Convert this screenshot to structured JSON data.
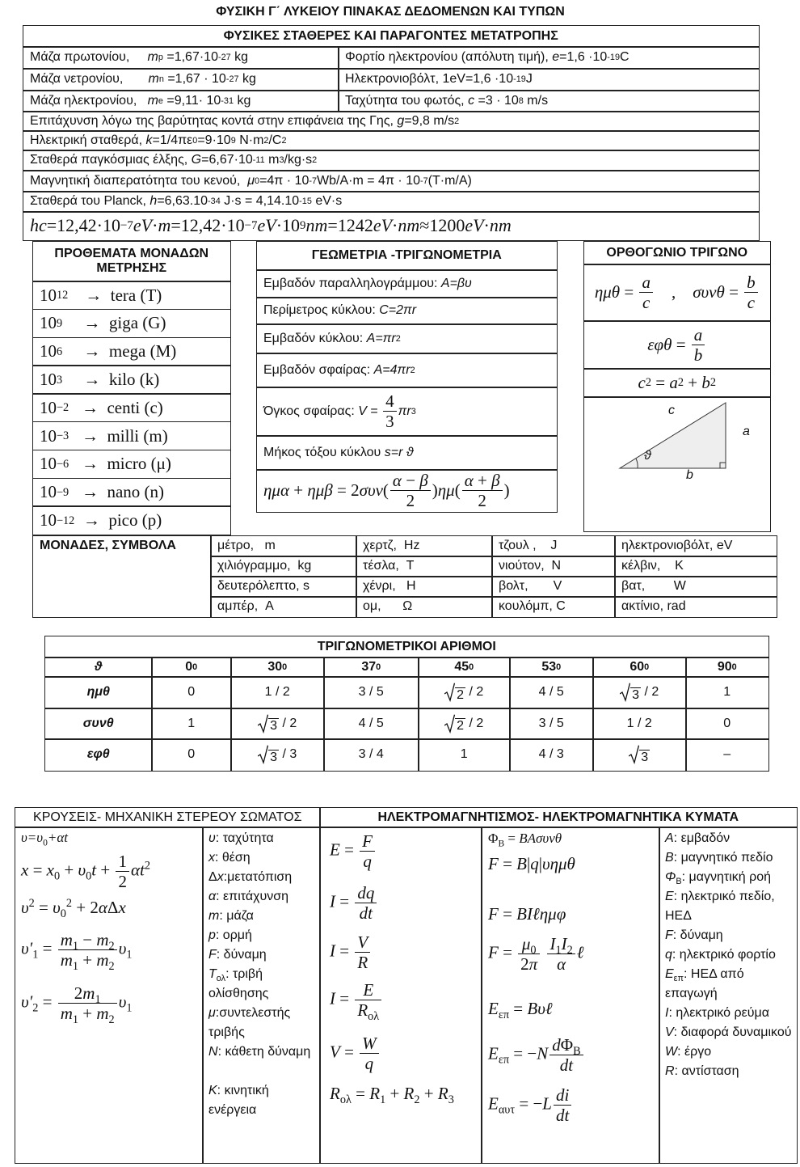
{
  "title": "ΦΥΣΙΚΗ Γ΄ ΛΥΚΕΙΟΥ ΠΙΝΑΚΑΣ ΔΕΔΟΜΕΝΩΝ ΚΑΙ ΤΥΠΩΝ",
  "constants": {
    "title": "ΦΥΣΙΚΕΣ ΣΤΑΘΕΡΕΣ ΚΑΙ ΠΑΡΑΓΟΝΤΕΣ ΜΕΤΑΤΡΟΠΗΣ",
    "rows": [
      [
        [
          "Μάζα πρωτονίου,     ",
          {
            "i": "m"
          },
          {
            "sub": "p"
          },
          " =1,67·10",
          {
            "sup": "-27"
          },
          " kg"
        ],
        [
          "Φορτίο ηλεκτρονίου (απόλυτη τιμή), ",
          {
            "i": "e"
          },
          "=1,6 ·10",
          {
            "sup": "-19"
          },
          "C"
        ]
      ],
      [
        [
          "Μάζα νετρονίου,       ",
          {
            "i": "m"
          },
          {
            "sub": "n"
          },
          " =1,67 · 10",
          {
            "sup": "-27"
          },
          " kg"
        ],
        [
          "Ηλεκτρονιοβόλτ, 1eV=1,6 ·10",
          {
            "sup": "-19"
          },
          "J"
        ]
      ],
      [
        [
          "Μάζα ηλεκτρονίου,   ",
          {
            "i": "m"
          },
          {
            "sub": "e"
          },
          " =9,11· 10",
          {
            "sup": "-31"
          },
          " kg"
        ],
        [
          "Ταχύτητα του φωτός, ",
          {
            "i": "c"
          },
          " =3 · 10",
          {
            "sup": "8"
          },
          " m/s"
        ]
      ],
      [
        [
          "Επιτάχυνση λόγω της βαρύτητας κοντά στην επιφάνεια της Γης, ",
          {
            "i": "g"
          },
          "=9,8 m/s",
          {
            "sup": "2"
          }
        ]
      ],
      [
        [
          "Ηλεκτρική σταθερά, ",
          {
            "i": "k"
          },
          "=1/4πε",
          {
            "sub": "0"
          },
          "=9·10",
          {
            "sup": "9"
          },
          " N·m",
          {
            "sup": "2"
          },
          "/C",
          {
            "sup": "2"
          }
        ]
      ],
      [
        [
          "Σταθερά παγκόσμιας έλξης, ",
          {
            "i": "G"
          },
          "=6,67·10",
          {
            "sup": "-11"
          },
          " m",
          {
            "sup": "3"
          },
          "/kg·s",
          {
            "sup": "2"
          }
        ]
      ],
      [
        [
          "Μαγνητική διαπερατότητα του κενού,  ",
          {
            "i": "μ"
          },
          {
            "sub": "0"
          },
          "=4π · 10",
          {
            "sup": "-7"
          },
          "Wb/A·m = 4π · 10",
          {
            "sup": "-7"
          },
          "(T·m/A)"
        ]
      ],
      [
        [
          "Σταθερά του Planck, ",
          {
            "i": "h"
          },
          "=6,63.10",
          {
            "sup": "-34"
          },
          " J·s = 4,14.10",
          {
            "sup": "-15"
          },
          " eV·s"
        ]
      ],
      [
        [
          {
            "i": "hc"
          },
          "=12,42·10",
          {
            "sup": "−7"
          },
          {
            "i": "eV"
          },
          "·",
          {
            "i": "m"
          },
          "=12,42·10",
          {
            "sup": "−7"
          },
          {
            "i": "eV"
          },
          "·10",
          {
            "sup": "9"
          },
          {
            "i": "nm"
          },
          "=1242",
          {
            "i": "eV"
          },
          "·",
          {
            "i": "nm"
          },
          "≈1200",
          {
            "i": "eV"
          },
          "·",
          {
            "i": "nm"
          }
        ]
      ]
    ]
  },
  "prefixes": {
    "title": "ΠΡΟΘΕΜΑΤΑ ΜΟΝΑΔΩΝ ΜΕΤΡΗΣΗΣ",
    "rows": [
      [
        "10",
        {
          "sup": "12"
        },
        "    →  tera (T)"
      ],
      [
        "10",
        {
          "sup": "9"
        },
        "     →  giga (G)"
      ],
      [
        "10",
        {
          "sup": "6"
        },
        "     →  mega (M)"
      ],
      [
        "10",
        {
          "sup": "3"
        },
        "     →  kilo (k)"
      ],
      [
        "10",
        {
          "sup": "−2"
        },
        "   →  centi (c)"
      ],
      [
        "10",
        {
          "sup": "−3"
        },
        "   →  milli (m)"
      ],
      [
        "10",
        {
          "sup": "−6"
        },
        "   →  micro (μ)"
      ],
      [
        "10",
        {
          "sup": "−9"
        },
        "   →  nano (n)"
      ],
      [
        "10",
        {
          "sup": "−12"
        },
        "  →  pico (p)"
      ]
    ]
  },
  "geometry": {
    "title": "ΓΕΩΜΕΤΡΙΑ -ΤΡΙΓΩΝΟΜΕΤΡΙΑ",
    "rows": [
      [
        "Εμβαδόν παραλληλογράμμου: ",
        {
          "i": "A=βυ"
        }
      ],
      [
        "Περίμετρος κύκλου: ",
        {
          "i": "C=2πr"
        }
      ],
      [
        "Εμβαδόν κύκλου: ",
        {
          "i": "A=πr"
        },
        {
          "sup": "2"
        }
      ],
      [
        "Εμβαδόν σφαίρας: ",
        {
          "i": "A=4πr"
        },
        {
          "sup": "2"
        }
      ],
      [
        "Όγκος σφαίρας: ",
        {
          "i": "V"
        },
        " = ",
        {
          "frac": {
            "num": [
              "4"
            ],
            "den": [
              "3"
            ]
          }
        },
        {
          "i": "πr"
        },
        {
          "sup": "3"
        }
      ],
      [
        "Μήκος τόξου κύκλου ",
        {
          "i": "s=r ϑ"
        }
      ],
      [
        {
          "i": "ημα"
        },
        " + ",
        {
          "i": "ημβ"
        },
        " = 2",
        {
          "i": "συν"
        },
        "(",
        {
          "frac": {
            "num": [
              {
                "i": "α"
              },
              " − ",
              {
                "i": "β"
              }
            ],
            "den": [
              "2"
            ]
          }
        },
        ")",
        {
          "i": "ημ"
        },
        "(",
        {
          "frac": {
            "num": [
              {
                "i": "α"
              },
              " + ",
              {
                "i": "β"
              }
            ],
            "den": [
              "2"
            ]
          }
        },
        ")"
      ]
    ]
  },
  "right_triangle": {
    "title": "ΟΡΘΟΓΩΝΙΟ ΤΡΙΓΩΝΟ",
    "rows": [
      [
        {
          "i": "ημθ"
        },
        " = ",
        {
          "frac": {
            "num": [
              {
                "i": "a"
              }
            ],
            "den": [
              {
                "i": "c"
              }
            ]
          }
        },
        "    ,    ",
        {
          "i": "συνθ"
        },
        " = ",
        {
          "frac": {
            "num": [
              {
                "i": "b"
              }
            ],
            "den": [
              {
                "i": "c"
              }
            ]
          }
        }
      ],
      [
        {
          "i": "εφθ"
        },
        " = ",
        {
          "frac": {
            "num": [
              {
                "i": "a"
              }
            ],
            "den": [
              {
                "i": "b"
              }
            ]
          }
        }
      ],
      [
        {
          "i": "c"
        },
        {
          "sup": "2"
        },
        " = ",
        {
          "i": "a"
        },
        {
          "sup": "2"
        },
        " + ",
        {
          "i": "b"
        },
        {
          "sup": "2"
        }
      ]
    ],
    "figure_labels": [
      "c",
      "a",
      "b",
      "ϑ"
    ]
  },
  "units": {
    "title": "ΜΟΝΑΔΕΣ, ΣΥΜΒΟΛΑ",
    "rows": [
      [
        "μέτρο,   m",
        "χερτζ,  Hz",
        "τζουλ ,    J",
        "ηλεκτρονιοβόλτ, eV"
      ],
      [
        "χιλιόγραμμο,  kg",
        "τέσλα,  T",
        "νιούτον,  N",
        "κέλβιν,    K"
      ],
      [
        "δευτερόλεπτο, s",
        "χένρι,   H",
        "βολτ,       V",
        "βατ,        W"
      ],
      [
        "αμπέρ,  A",
        "ομ,      Ω",
        "κουλόμπ, C",
        "ακτίνιο, rad"
      ]
    ]
  },
  "trig_table": {
    "title": "ΤΡΙΓΩΝΟΜΕΤΡΙΚΟΙ ΑΡΙΘΜΟΙ",
    "header": [
      [
        {
          "i": "ϑ"
        }
      ],
      [
        "0",
        {
          "sup": "0"
        }
      ],
      [
        "30",
        {
          "sup": "0"
        }
      ],
      [
        "37",
        {
          "sup": "0"
        }
      ],
      [
        "45",
        {
          "sup": "0"
        }
      ],
      [
        "53",
        {
          "sup": "0"
        }
      ],
      [
        "60",
        {
          "sup": "0"
        }
      ],
      [
        "90",
        {
          "sup": "0"
        }
      ]
    ],
    "rows": [
      [
        [
          {
            "i": "ημθ"
          }
        ],
        [
          "0"
        ],
        [
          "1 / 2"
        ],
        [
          "3 / 5"
        ],
        [
          {
            "sqrt": "2"
          },
          " / 2"
        ],
        [
          "4 / 5"
        ],
        [
          {
            "sqrt": "3"
          },
          " / 2"
        ],
        [
          "1"
        ]
      ],
      [
        [
          {
            "i": "συνθ"
          }
        ],
        [
          "1"
        ],
        [
          {
            "sqrt": "3"
          },
          " / 2"
        ],
        [
          "4 / 5"
        ],
        [
          {
            "sqrt": "2"
          },
          " / 2"
        ],
        [
          "3 / 5"
        ],
        [
          "1 / 2"
        ],
        [
          "0"
        ]
      ],
      [
        [
          {
            "i": "εφθ"
          }
        ],
        [
          "0"
        ],
        [
          {
            "sqrt": "3"
          },
          " / 3"
        ],
        [
          "3 / 4"
        ],
        [
          "1"
        ],
        [
          "4 / 3"
        ],
        [
          {
            "sqrt": "3"
          }
        ],
        [
          "–"
        ]
      ]
    ]
  },
  "mechanics": {
    "title": "ΚΡΟΥΣΕΙΣ- ΜΗΧΑΝΙΚΗ ΣΤΕΡΕΟΥ ΣΩΜΑΤΟΣ",
    "formulas": [
      [
        {
          "i": "υ=υ"
        },
        {
          "sub": "0"
        },
        {
          "i": "+αt"
        }
      ],
      [
        {
          "i": "x"
        },
        " = ",
        {
          "i": "x"
        },
        {
          "sub": "0"
        },
        " + ",
        {
          "i": "υ"
        },
        {
          "sub": "0"
        },
        {
          "i": "t"
        },
        " + ",
        {
          "frac": {
            "num": [
              "1"
            ],
            "den": [
              "2"
            ]
          }
        },
        {
          "i": "αt"
        },
        {
          "sup": "2"
        }
      ],
      [
        {
          "i": "υ"
        },
        {
          "sup": "2"
        },
        " = ",
        {
          "i": "υ"
        },
        {
          "sub": "0"
        },
        {
          "sup": "2"
        },
        " + 2",
        {
          "i": "α"
        },
        "Δ",
        {
          "i": "x"
        }
      ],
      [
        {
          "i": "υ′"
        },
        {
          "sub": "1"
        },
        " = ",
        {
          "frac": {
            "num": [
              {
                "i": "m"
              },
              {
                "sub": "1"
              },
              " − ",
              {
                "i": "m"
              },
              {
                "sub": "2"
              }
            ],
            "den": [
              {
                "i": "m"
              },
              {
                "sub": "1"
              },
              " + ",
              {
                "i": "m"
              },
              {
                "sub": "2"
              }
            ]
          }
        },
        {
          "i": "υ"
        },
        {
          "sub": "1"
        }
      ],
      [
        {
          "i": "υ′"
        },
        {
          "sub": "2"
        },
        " = ",
        {
          "frac": {
            "num": [
              "2",
              {
                "i": "m"
              },
              {
                "sub": "1"
              }
            ],
            "den": [
              {
                "i": "m"
              },
              {
                "sub": "1"
              },
              " + ",
              {
                "i": "m"
              },
              {
                "sub": "2"
              }
            ]
          }
        },
        {
          "i": "υ"
        },
        {
          "sub": "1"
        }
      ]
    ],
    "definitions": [
      [
        {
          "i": "υ"
        },
        ": ταχύτητα"
      ],
      [
        {
          "i": "x"
        },
        ": θέση"
      ],
      [
        "Δ",
        {
          "i": "x"
        },
        ":μετατόπιση"
      ],
      [
        {
          "i": "α"
        },
        ": επιτάχυνση"
      ],
      [
        {
          "i": "m"
        },
        ": μάζα"
      ],
      [
        {
          "i": "p"
        },
        ": ορμή"
      ],
      [
        {
          "i": "F"
        },
        ": δύναμη"
      ],
      [
        {
          "i": "T"
        },
        {
          "sub": "ολ"
        },
        ": τριβή ολίσθησης"
      ],
      [
        {
          "i": "μ"
        },
        ":συντελεστής τριβής"
      ],
      [
        {
          "i": "N"
        },
        ": κάθετη δύναμη"
      ],
      [
        {
          "i": "K"
        },
        ": κινητική ενέργεια"
      ]
    ]
  },
  "electromagnetism": {
    "title": "ΗΛΕΚΤΡΟΜΑΓΝΗΤΙΣΜΟΣ- ΗΛΕΚΤΡΟΜΑΓΝΗΤΙΚΑ ΚΥΜΑΤΑ",
    "formulas_1": [
      [
        {
          "i": "E"
        },
        " = ",
        {
          "frac": {
            "num": [
              {
                "i": "F"
              }
            ],
            "den": [
              {
                "i": "q"
              }
            ]
          }
        }
      ],
      [
        {
          "i": "I"
        },
        " = ",
        {
          "frac": {
            "num": [
              {
                "i": "dq"
              }
            ],
            "den": [
              {
                "i": "dt"
              }
            ]
          }
        }
      ],
      [
        {
          "i": "I"
        },
        " = ",
        {
          "frac": {
            "num": [
              {
                "i": "V"
              }
            ],
            "den": [
              {
                "i": "R"
              }
            ]
          }
        }
      ],
      [
        {
          "i": "I"
        },
        " = ",
        {
          "frac": {
            "num": [
              {
                "i": "E"
              }
            ],
            "den": [
              {
                "i": "R"
              },
              {
                "sub": "ολ"
              }
            ]
          }
        }
      ],
      [
        {
          "i": "V"
        },
        " = ",
        {
          "frac": {
            "num": [
              {
                "i": "W"
              }
            ],
            "den": [
              {
                "i": "q"
              }
            ]
          }
        }
      ],
      [
        {
          "i": "R"
        },
        {
          "sub": "ολ"
        },
        " = ",
        {
          "i": "R"
        },
        {
          "sub": "1"
        },
        " + ",
        {
          "i": "R"
        },
        {
          "sub": "2"
        },
        " + ",
        {
          "i": "R"
        },
        {
          "sub": "3"
        }
      ]
    ],
    "formulas_2": [
      [
        "Φ",
        {
          "sub": "B"
        },
        " = ",
        {
          "i": "BAσυνθ"
        }
      ],
      [
        {
          "i": "F"
        },
        " = ",
        {
          "i": "B"
        },
        "|",
        {
          "i": "q"
        },
        "|",
        {
          "i": "υημθ"
        }
      ],
      [
        {
          "i": "F"
        },
        " = ",
        {
          "i": "BIℓημφ"
        }
      ],
      [
        {
          "i": "F"
        },
        " = ",
        {
          "frac": {
            "num": [
              {
                "i": "μ"
              },
              {
                "sub": "0"
              }
            ],
            "den": [
              "2",
              {
                "i": "π"
              }
            ]
          }
        },
        " ",
        {
          "frac": {
            "num": [
              {
                "i": "I"
              },
              {
                "sub": "1"
              },
              {
                "i": "I"
              },
              {
                "sub": "2"
              }
            ],
            "den": [
              {
                "i": "α"
              }
            ]
          }
        },
        {
          "i": "ℓ"
        }
      ],
      [
        {
          "i": "E"
        },
        {
          "sub": "επ"
        },
        " = ",
        {
          "i": "Bυℓ"
        }
      ],
      [
        {
          "i": "E"
        },
        {
          "sub": "επ"
        },
        " = −",
        {
          "i": "N"
        },
        {
          "frac": {
            "num": [
              {
                "i": "d"
              },
              "Φ",
              {
                "sub": "B"
              }
            ],
            "den": [
              {
                "i": "dt"
              }
            ]
          }
        }
      ],
      [
        {
          "i": "E"
        },
        {
          "sub": "αυτ"
        },
        " = −",
        {
          "i": "L"
        },
        {
          "frac": {
            "num": [
              {
                "i": "di"
              }
            ],
            "den": [
              {
                "i": "dt"
              }
            ]
          }
        }
      ]
    ],
    "definitions": [
      [
        {
          "i": "A"
        },
        ": εμβαδόν"
      ],
      [
        {
          "i": "B"
        },
        ": μαγνητικό πεδίο"
      ],
      [
        {
          "i": "Φ"
        },
        {
          "sub": "B"
        },
        ": μαγνητική ροή"
      ],
      [
        {
          "i": "E"
        },
        ": ηλεκτρικό πεδίο, ΗΕΔ"
      ],
      [
        {
          "i": "F"
        },
        ": δύναμη"
      ],
      [
        {
          "i": "q"
        },
        ": ηλεκτρικό φορτίο"
      ],
      [
        {
          "i": "E"
        },
        {
          "sub": "επ"
        },
        ": ΗΕΔ από επαγωγή"
      ],
      [
        {
          "i": "I"
        },
        ": ηλεκτρικό ρεύμα"
      ],
      [
        {
          "i": "V"
        },
        ": διαφορά δυναμικού"
      ],
      [
        {
          "i": "W"
        },
        ": έργο"
      ],
      [
        {
          "i": "R"
        },
        ": αντίσταση"
      ]
    ]
  }
}
